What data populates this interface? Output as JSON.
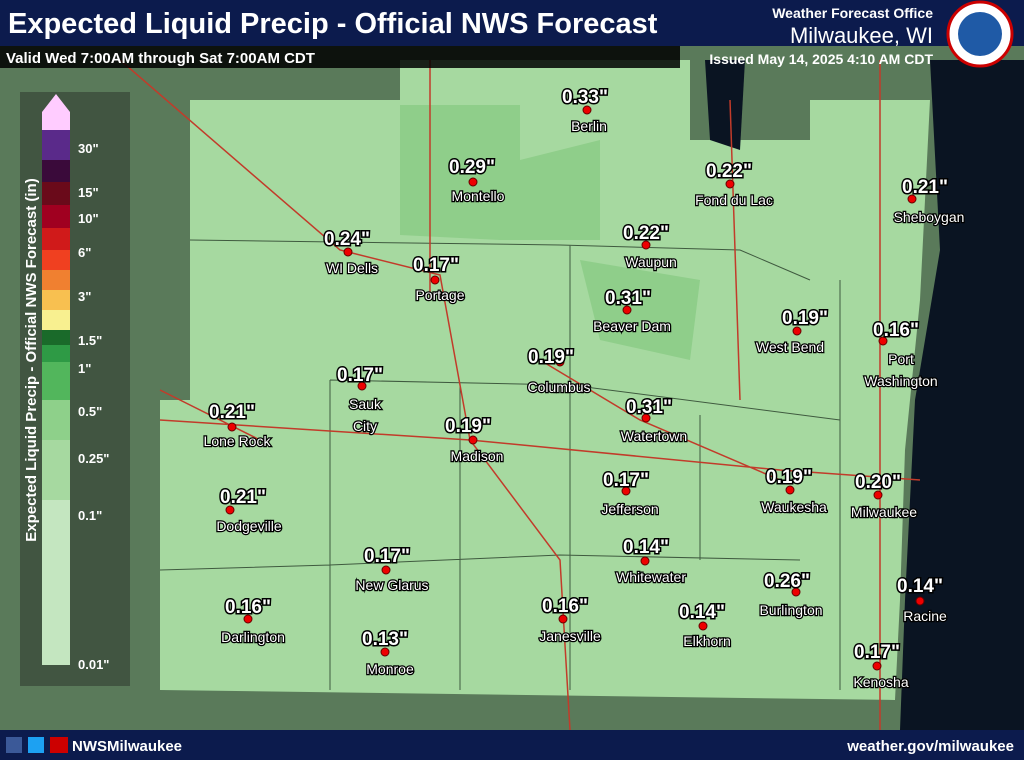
{
  "header": {
    "title": "Expected Liquid Precip - Official NWS Forecast",
    "valid": "Valid Wed 7:00AM through Sat 7:00AM CDT"
  },
  "office": {
    "name": "Weather Forecast Office",
    "location": "Milwaukee, WI",
    "issued": "Issued May 14, 2025 4:10 AM CDT"
  },
  "legend": {
    "title": "Expected Liquid Precip - Official NWS Forecast (in)",
    "ticks": [
      "30\"",
      "15\"",
      "10\"",
      "6\"",
      "3\"",
      "1.5\"",
      "1\"",
      "0.5\"",
      "0.25\"",
      "0.1\"",
      "0.01\""
    ]
  },
  "cities": [
    {
      "value": "0.33\"",
      "name": [
        "Berlin"
      ]
    },
    {
      "value": "0.29\"",
      "name": [
        "Montello"
      ]
    },
    {
      "value": "0.22\"",
      "name": [
        "Fond du Lac"
      ]
    },
    {
      "value": "0.21\"",
      "name": [
        "Sheboygan"
      ]
    },
    {
      "value": "0.24\"",
      "name": [
        "WI Dells"
      ]
    },
    {
      "value": "0.17\"",
      "name": [
        "Portage"
      ]
    },
    {
      "value": "0.22\"",
      "name": [
        "Waupun"
      ]
    },
    {
      "value": "0.31\"",
      "name": [
        "Beaver Dam"
      ]
    },
    {
      "value": "0.19\"",
      "name": [
        "West Bend"
      ]
    },
    {
      "value": "0.16\"",
      "name": [
        "Port",
        "Washington"
      ]
    },
    {
      "value": "0.19\"",
      "name": [
        "Columbus"
      ]
    },
    {
      "value": "0.17\"",
      "name": [
        "Sauk",
        "City"
      ]
    },
    {
      "value": "0.21\"",
      "name": [
        "Lone Rock"
      ]
    },
    {
      "value": "0.31\"",
      "name": [
        "Watertown"
      ]
    },
    {
      "value": "0.19\"",
      "name": [
        "Madison"
      ]
    },
    {
      "value": "0.17\"",
      "name": [
        "Jefferson"
      ]
    },
    {
      "value": "0.19\"",
      "name": [
        "Waukesha"
      ]
    },
    {
      "value": "0.20\"",
      "name": [
        "Milwaukee"
      ]
    },
    {
      "value": "0.21\"",
      "name": [
        "Dodgeville"
      ]
    },
    {
      "value": "0.14\"",
      "name": [
        "Whitewater"
      ]
    },
    {
      "value": "0.17\"",
      "name": [
        "New Glarus"
      ]
    },
    {
      "value": "0.26\"",
      "name": [
        "Burlington"
      ]
    },
    {
      "value": "0.14\"",
      "name": [
        "Racine"
      ]
    },
    {
      "value": "0.16\"",
      "name": [
        "Darlington"
      ]
    },
    {
      "value": "0.16\"",
      "name": [
        "Janesville"
      ]
    },
    {
      "value": "0.14\"",
      "name": [
        "Elkhorn"
      ]
    },
    {
      "value": "0.13\"",
      "name": [
        "Monroe"
      ]
    },
    {
      "value": "0.17\"",
      "name": [
        "Kenosha"
      ]
    }
  ],
  "footer": {
    "handle": "NWSMilwaukee",
    "url": "weather.gov/milwaukee"
  }
}
